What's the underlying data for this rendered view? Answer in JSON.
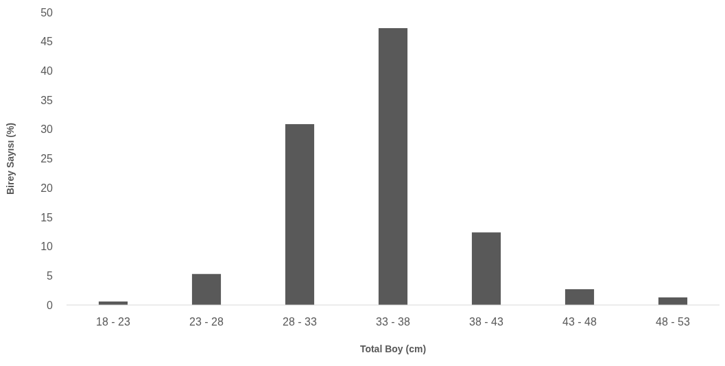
{
  "chart_data": {
    "type": "bar",
    "xlabel": "Total Boy (cm)",
    "ylabel": "Birey Sayısı (%)",
    "categories": [
      "18 - 23",
      "23 - 28",
      "28 - 33",
      "33 - 38",
      "38 - 43",
      "43 - 48",
      "48 - 53"
    ],
    "values": [
      0.6,
      5.3,
      30.9,
      47.3,
      12.4,
      2.7,
      1.3
    ],
    "color": "#595959",
    "ylim": [
      0,
      50
    ],
    "yticks": [
      0,
      5,
      10,
      15,
      20,
      25,
      30,
      35,
      40,
      45,
      50
    ],
    "grid": false
  }
}
